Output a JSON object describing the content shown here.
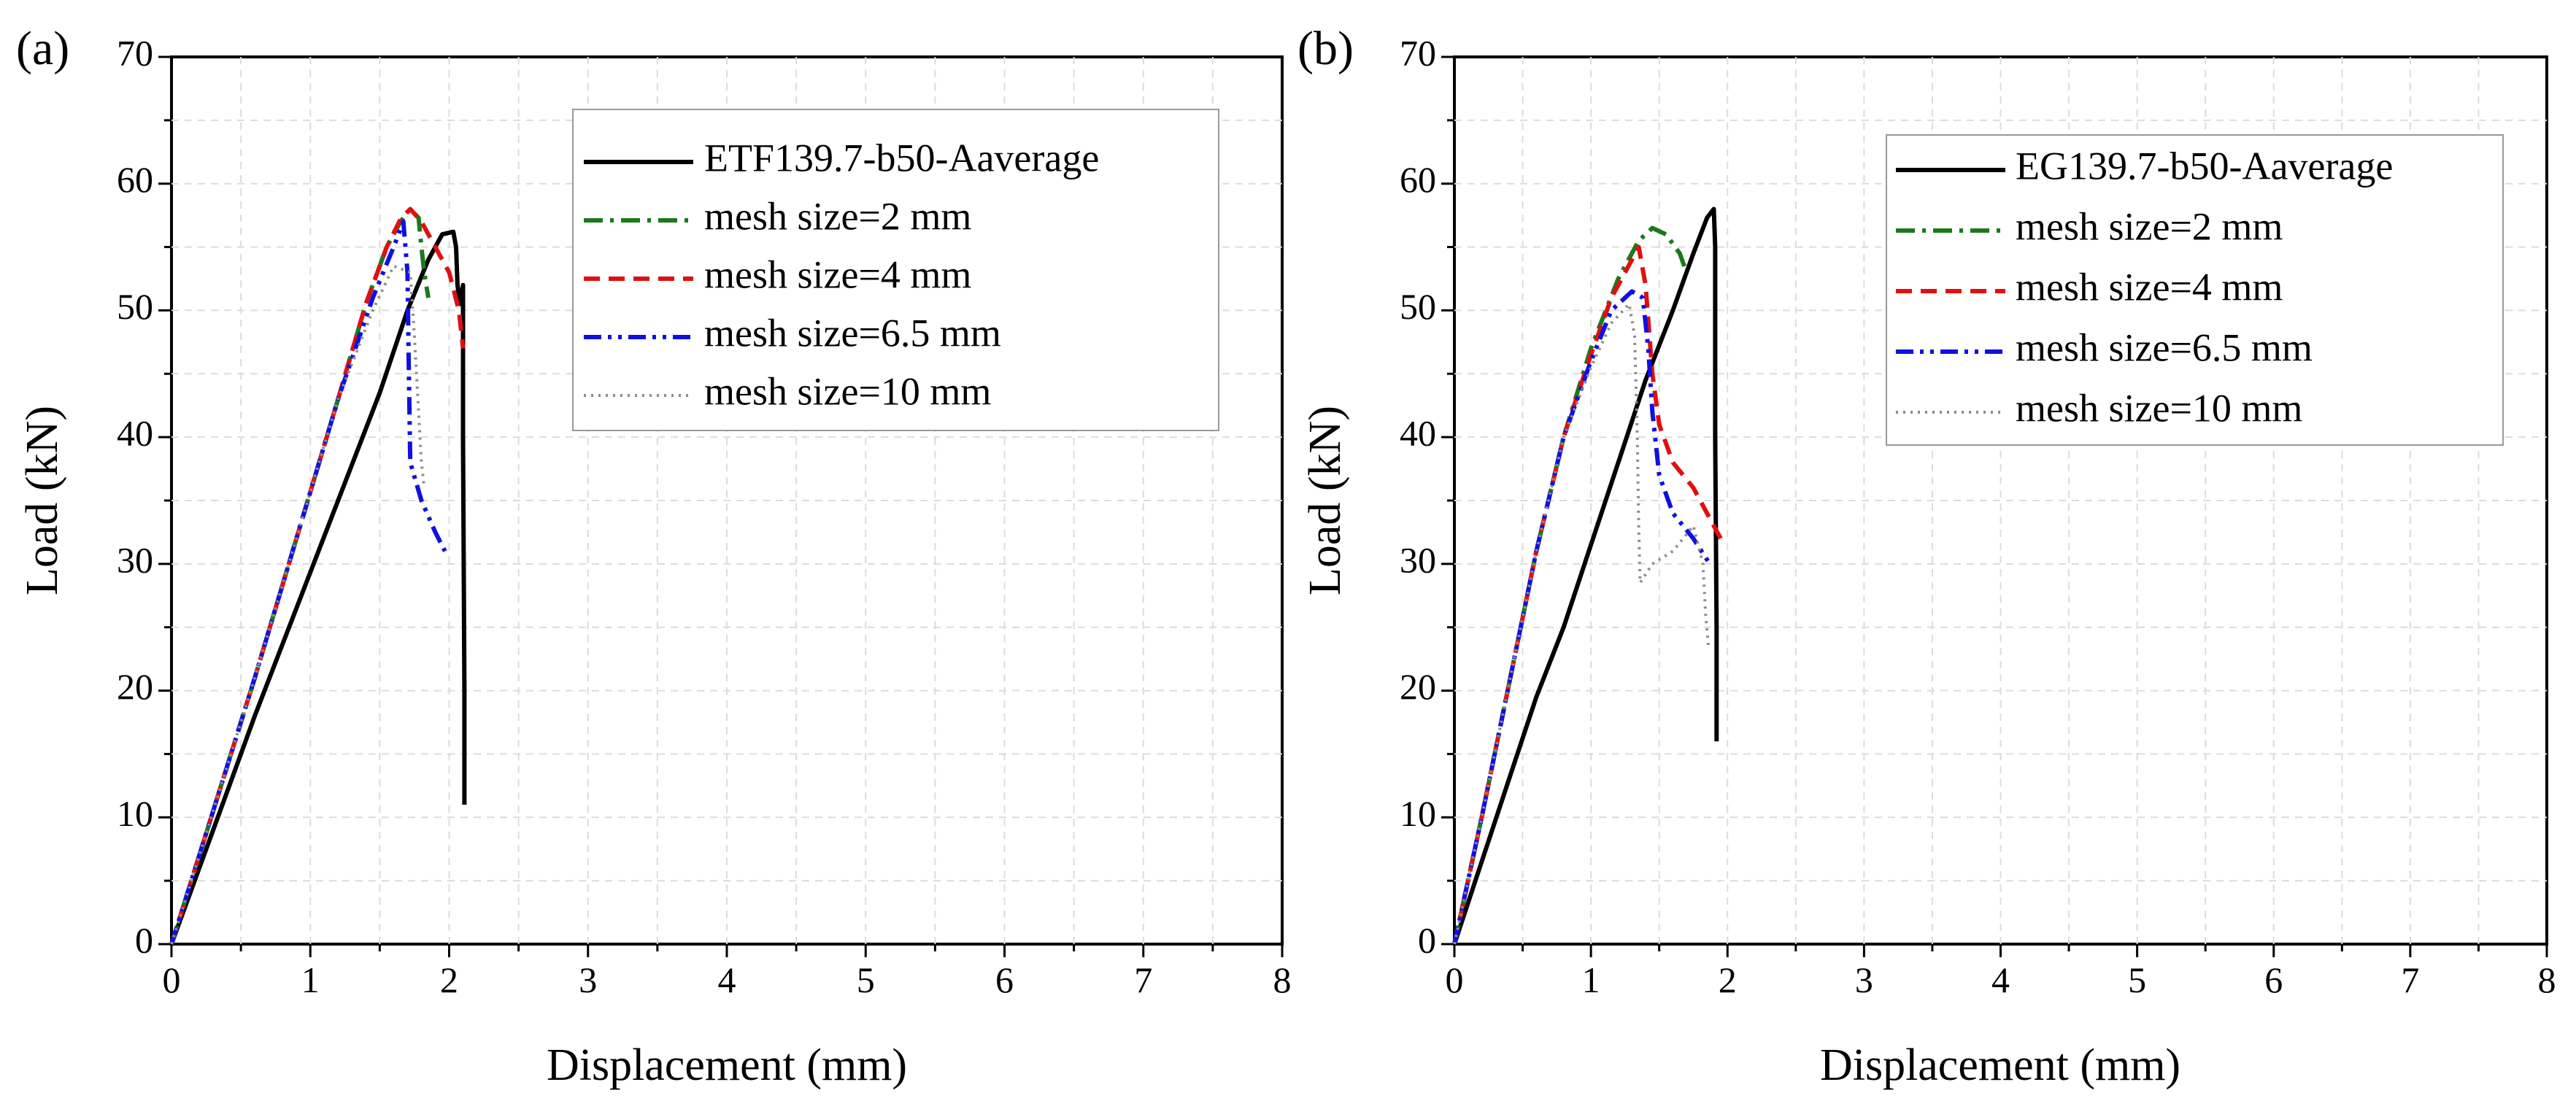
{
  "chart_data": [
    {
      "type": "line",
      "panel_label": "(a)",
      "xlabel": "Displacement (mm)",
      "ylabel": "Load (kN)",
      "xlim": [
        0,
        8
      ],
      "ylim": [
        0,
        70
      ],
      "xticks": [
        "0",
        "1",
        "2",
        "3",
        "4",
        "5",
        "6",
        "7",
        "8"
      ],
      "yticks": [
        "0",
        "10",
        "20",
        "30",
        "40",
        "50",
        "60",
        "70"
      ],
      "grid": true,
      "legend_position": "top-right",
      "series": [
        {
          "name": "ETF139.7-b50-Aaverage",
          "color": "#000000",
          "dash": "solid",
          "points": [
            [
              0,
              0
            ],
            [
              0.3,
              9
            ],
            [
              0.6,
              18
            ],
            [
              0.9,
              26.5
            ],
            [
              1.2,
              35
            ],
            [
              1.5,
              43.5
            ],
            [
              1.7,
              50
            ],
            [
              1.85,
              54
            ],
            [
              1.95,
              56
            ],
            [
              2.03,
              56.2
            ],
            [
              2.05,
              55
            ],
            [
              2.06,
              52
            ],
            [
              2.08,
              50.5
            ],
            [
              2.1,
              52
            ],
            [
              2.1,
              40
            ],
            [
              2.11,
              20
            ],
            [
              2.11,
              11
            ]
          ]
        },
        {
          "name": "mesh size=2 mm",
          "color": "#1a7a1a",
          "dash": "dashdot",
          "points": [
            [
              0,
              0
            ],
            [
              0.3,
              10.5
            ],
            [
              0.6,
              21
            ],
            [
              0.9,
              32
            ],
            [
              1.2,
              43
            ],
            [
              1.4,
              50.5
            ],
            [
              1.55,
              55
            ],
            [
              1.65,
              57
            ],
            [
              1.72,
              58
            ],
            [
              1.78,
              57.3
            ],
            [
              1.8,
              55
            ],
            [
              1.82,
              53
            ],
            [
              1.85,
              51
            ]
          ]
        },
        {
          "name": "mesh size=4 mm",
          "color": "#e01010",
          "dash": "dashed",
          "points": [
            [
              0,
              0
            ],
            [
              0.3,
              10.5
            ],
            [
              0.6,
              21
            ],
            [
              0.9,
              32
            ],
            [
              1.2,
              43
            ],
            [
              1.4,
              50.5
            ],
            [
              1.55,
              55
            ],
            [
              1.65,
              57.2
            ],
            [
              1.72,
              58
            ],
            [
              1.8,
              57
            ],
            [
              1.9,
              55
            ],
            [
              2.0,
              53
            ],
            [
              2.07,
              50
            ],
            [
              2.1,
              47
            ]
          ]
        },
        {
          "name": "mesh size=6.5 mm",
          "color": "#1010e0",
          "dash": "dashdotdot",
          "points": [
            [
              0,
              0
            ],
            [
              0.3,
              10.5
            ],
            [
              0.6,
              21
            ],
            [
              0.9,
              32
            ],
            [
              1.2,
              43
            ],
            [
              1.45,
              51
            ],
            [
              1.6,
              55
            ],
            [
              1.67,
              57
            ],
            [
              1.7,
              53
            ],
            [
              1.71,
              45
            ],
            [
              1.72,
              38
            ],
            [
              1.8,
              35
            ],
            [
              1.9,
              32.5
            ],
            [
              1.97,
              31
            ]
          ]
        },
        {
          "name": "mesh size=10 mm",
          "color": "#8c8c8c",
          "dash": "dotted",
          "points": [
            [
              0,
              0
            ],
            [
              0.3,
              10.5
            ],
            [
              0.6,
              21
            ],
            [
              0.9,
              32
            ],
            [
              1.2,
              43
            ],
            [
              1.45,
              50
            ],
            [
              1.6,
              53.5
            ],
            [
              1.72,
              53
            ],
            [
              1.75,
              48
            ],
            [
              1.78,
              42
            ],
            [
              1.8,
              38
            ],
            [
              1.82,
              36
            ]
          ]
        }
      ]
    },
    {
      "type": "line",
      "panel_label": "(b)",
      "xlabel": "Displacement (mm)",
      "ylabel": "Load (kN)",
      "xlim": [
        0,
        8
      ],
      "ylim": [
        0,
        70
      ],
      "xticks": [
        "0",
        "1",
        "2",
        "3",
        "4",
        "5",
        "6",
        "7",
        "8"
      ],
      "yticks": [
        "0",
        "10",
        "20",
        "30",
        "40",
        "50",
        "60",
        "70"
      ],
      "grid": true,
      "legend_position": "top-right",
      "series": [
        {
          "name": "EG139.7-b50-Aaverage",
          "color": "#000000",
          "dash": "solid",
          "points": [
            [
              0,
              0
            ],
            [
              0.2,
              6.5
            ],
            [
              0.4,
              13
            ],
            [
              0.6,
              19.5
            ],
            [
              0.8,
              25
            ],
            [
              1.0,
              31.5
            ],
            [
              1.2,
              38
            ],
            [
              1.4,
              44.5
            ],
            [
              1.6,
              50
            ],
            [
              1.75,
              54.5
            ],
            [
              1.85,
              57.3
            ],
            [
              1.9,
              58
            ],
            [
              1.91,
              55
            ],
            [
              1.91,
              40
            ],
            [
              1.92,
              25
            ],
            [
              1.92,
              16
            ]
          ]
        },
        {
          "name": "mesh size=2 mm",
          "color": "#1a7a1a",
          "dash": "dashdot",
          "points": [
            [
              0,
              0
            ],
            [
              0.2,
              10
            ],
            [
              0.4,
              20.5
            ],
            [
              0.6,
              31
            ],
            [
              0.8,
              40
            ],
            [
              1.0,
              47
            ],
            [
              1.2,
              52.5
            ],
            [
              1.35,
              55.5
            ],
            [
              1.45,
              56.5
            ],
            [
              1.55,
              56
            ],
            [
              1.65,
              54.5
            ],
            [
              1.7,
              53
            ]
          ]
        },
        {
          "name": "mesh size=4 mm",
          "color": "#e01010",
          "dash": "dashed",
          "points": [
            [
              0,
              0
            ],
            [
              0.2,
              10
            ],
            [
              0.4,
              20.5
            ],
            [
              0.6,
              31
            ],
            [
              0.8,
              40
            ],
            [
              1.0,
              46.5
            ],
            [
              1.15,
              51
            ],
            [
              1.3,
              54
            ],
            [
              1.35,
              55
            ],
            [
              1.4,
              52
            ],
            [
              1.45,
              45
            ],
            [
              1.5,
              41
            ],
            [
              1.6,
              38
            ],
            [
              1.75,
              36
            ],
            [
              1.85,
              34
            ],
            [
              1.95,
              32
            ]
          ]
        },
        {
          "name": "mesh size=6.5 mm",
          "color": "#1010e0",
          "dash": "dashdotdot",
          "points": [
            [
              0,
              0
            ],
            [
              0.2,
              10
            ],
            [
              0.4,
              20.5
            ],
            [
              0.6,
              31
            ],
            [
              0.8,
              40
            ],
            [
              1.0,
              46
            ],
            [
              1.15,
              50
            ],
            [
              1.3,
              51.5
            ],
            [
              1.38,
              51
            ],
            [
              1.42,
              47
            ],
            [
              1.45,
              42
            ],
            [
              1.5,
              37
            ],
            [
              1.6,
              34
            ],
            [
              1.75,
              32
            ],
            [
              1.87,
              30
            ]
          ]
        },
        {
          "name": "mesh size=10 mm",
          "color": "#8c8c8c",
          "dash": "dotted",
          "points": [
            [
              0,
              0
            ],
            [
              0.2,
              10
            ],
            [
              0.4,
              20.5
            ],
            [
              0.6,
              31
            ],
            [
              0.8,
              40
            ],
            [
              1.0,
              45.5
            ],
            [
              1.15,
              49
            ],
            [
              1.28,
              50.5
            ],
            [
              1.32,
              48
            ],
            [
              1.34,
              40
            ],
            [
              1.35,
              33
            ],
            [
              1.36,
              28.5
            ],
            [
              1.45,
              30
            ],
            [
              1.6,
              31
            ],
            [
              1.75,
              33
            ],
            [
              1.82,
              30
            ],
            [
              1.84,
              26
            ],
            [
              1.86,
              23.5
            ]
          ]
        }
      ]
    }
  ]
}
